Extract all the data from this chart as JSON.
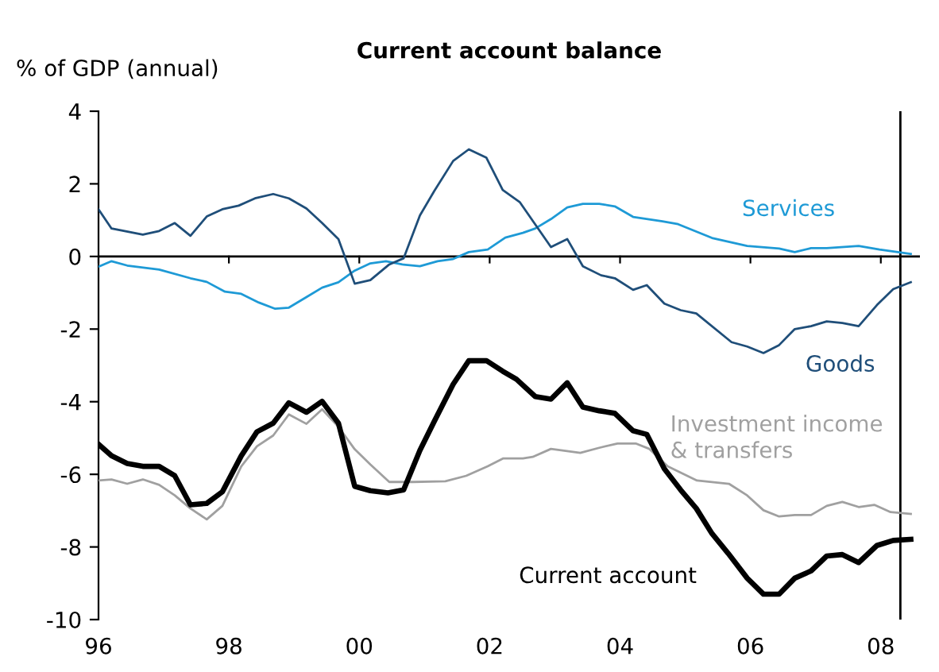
{
  "chart_data": {
    "type": "line",
    "title": "Current account balance",
    "ylabel": "% of GDP (annual)",
    "xlim": [
      1996,
      2008.6
    ],
    "xticks": [
      {
        "value": 1996,
        "label": "96"
      },
      {
        "value": 1998,
        "label": "98"
      },
      {
        "value": 2000,
        "label": "00"
      },
      {
        "value": 2002,
        "label": "02"
      },
      {
        "value": 2004,
        "label": "04"
      },
      {
        "value": 2006,
        "label": "06"
      },
      {
        "value": 2008,
        "label": "08"
      }
    ],
    "ylim": [
      -10,
      4
    ],
    "yticks": [
      -10,
      -8,
      -6,
      -4,
      -2,
      0,
      2,
      4
    ],
    "grid": false,
    "legend": false,
    "marker": "none",
    "line_style": "solid",
    "ref_lines": [
      {
        "axis": "x",
        "value": 2008.3,
        "color": "#000000"
      },
      {
        "axis": "y",
        "value": 0,
        "color": "#000000"
      }
    ],
    "series": [
      {
        "name": "Services",
        "color": "#1e9ad6",
        "x": [
          1996.0,
          1996.2,
          1996.44,
          1996.93,
          1997.41,
          1997.66,
          1997.94,
          1998.19,
          1998.46,
          1998.71,
          1998.92,
          1999.19,
          1999.43,
          1999.68,
          1999.93,
          2000.17,
          2000.41,
          2000.66,
          2000.93,
          2001.2,
          2001.44,
          2001.68,
          2001.97,
          2002.24,
          2002.51,
          2002.7,
          2002.94,
          2003.19,
          2003.43,
          2003.68,
          2003.92,
          2004.2,
          2004.65,
          2004.89,
          2005.41,
          2005.95,
          2006.44,
          2006.68,
          2006.93,
          2007.17,
          2007.66,
          2007.98,
          2008.46
        ],
        "values": [
          -0.28,
          -0.13,
          -0.25,
          -0.36,
          -0.6,
          -0.7,
          -0.97,
          -1.03,
          -1.27,
          -1.44,
          -1.41,
          -1.12,
          -0.86,
          -0.71,
          -0.39,
          -0.19,
          -0.13,
          -0.22,
          -0.27,
          -0.13,
          -0.07,
          0.12,
          0.19,
          0.52,
          0.65,
          0.77,
          1.03,
          1.35,
          1.45,
          1.45,
          1.38,
          1.09,
          0.97,
          0.89,
          0.51,
          0.29,
          0.22,
          0.12,
          0.23,
          0.23,
          0.29,
          0.19,
          0.07
        ]
      },
      {
        "name": "Goods",
        "color": "#1f4e79",
        "x": [
          1996.0,
          1996.2,
          1996.68,
          1996.93,
          1997.17,
          1997.41,
          1997.66,
          1997.9,
          1998.15,
          1998.4,
          1998.68,
          1998.92,
          1999.19,
          1999.43,
          1999.68,
          1999.93,
          2000.17,
          2000.46,
          2000.68,
          2000.93,
          2001.15,
          2001.44,
          2001.68,
          2001.95,
          2002.2,
          2002.46,
          2002.94,
          2003.19,
          2003.43,
          2003.71,
          2003.92,
          2004.2,
          2004.41,
          2004.68,
          2004.93,
          2005.17,
          2005.71,
          2005.95,
          2006.2,
          2006.44,
          2006.68,
          2006.93,
          2007.17,
          2007.41,
          2007.66,
          2007.94,
          2008.19,
          2008.46
        ],
        "values": [
          1.3,
          0.77,
          0.6,
          0.7,
          0.92,
          0.57,
          1.1,
          1.3,
          1.4,
          1.6,
          1.72,
          1.6,
          1.32,
          0.92,
          0.48,
          -0.75,
          -0.65,
          -0.22,
          -0.05,
          1.13,
          1.8,
          2.63,
          2.95,
          2.72,
          1.83,
          1.5,
          0.26,
          0.48,
          -0.27,
          -0.52,
          -0.6,
          -0.92,
          -0.79,
          -1.3,
          -1.48,
          -1.57,
          -2.36,
          -2.48,
          -2.66,
          -2.44,
          -2.0,
          -1.92,
          -1.79,
          -1.83,
          -1.92,
          -1.34,
          -0.9,
          -0.71
        ]
      },
      {
        "name": "Investment income\n& transfers",
        "color": "#a0a0a0",
        "x": [
          1996.0,
          1996.2,
          1996.44,
          1996.68,
          1996.93,
          1997.17,
          1997.41,
          1997.66,
          1997.9,
          1998.19,
          1998.43,
          1998.68,
          1998.92,
          1999.19,
          1999.43,
          1999.68,
          1999.93,
          2000.17,
          2000.46,
          2000.83,
          2001.32,
          2001.64,
          2001.97,
          2002.21,
          2002.51,
          2002.66,
          2002.94,
          2003.39,
          2003.68,
          2003.96,
          2004.24,
          2004.45,
          2004.73,
          2005.18,
          2005.67,
          2005.95,
          2006.2,
          2006.44,
          2006.68,
          2006.93,
          2007.17,
          2007.41,
          2007.66,
          2007.9,
          2008.15,
          2008.46
        ],
        "values": [
          -6.17,
          -6.14,
          -6.26,
          -6.14,
          -6.29,
          -6.58,
          -6.94,
          -7.24,
          -6.87,
          -5.78,
          -5.23,
          -4.93,
          -4.35,
          -4.61,
          -4.21,
          -4.69,
          -5.31,
          -5.73,
          -6.21,
          -6.21,
          -6.19,
          -6.04,
          -5.78,
          -5.56,
          -5.56,
          -5.52,
          -5.3,
          -5.41,
          -5.27,
          -5.15,
          -5.15,
          -5.3,
          -5.78,
          -6.17,
          -6.26,
          -6.58,
          -6.99,
          -7.16,
          -7.12,
          -7.12,
          -6.87,
          -6.76,
          -6.9,
          -6.84,
          -7.04,
          -7.09
        ]
      },
      {
        "name": "Current account",
        "color": "#000000",
        "x": [
          1996.0,
          1996.2,
          1996.44,
          1996.68,
          1996.93,
          1997.17,
          1997.41,
          1997.66,
          1997.9,
          1998.19,
          1998.43,
          1998.68,
          1998.92,
          1999.19,
          1999.43,
          1999.68,
          1999.93,
          2000.17,
          2000.44,
          2000.68,
          2000.93,
          2001.15,
          2001.44,
          2001.68,
          2001.95,
          2002.2,
          2002.41,
          2002.7,
          2002.94,
          2003.19,
          2003.43,
          2003.68,
          2003.92,
          2004.2,
          2004.41,
          2004.68,
          2004.93,
          2005.17,
          2005.41,
          2005.66,
          2005.95,
          2006.2,
          2006.44,
          2006.68,
          2006.93,
          2007.17,
          2007.41,
          2007.66,
          2007.94,
          2008.19,
          2008.46
        ],
        "values": [
          -5.17,
          -5.49,
          -5.7,
          -5.78,
          -5.78,
          -6.04,
          -6.84,
          -6.8,
          -6.48,
          -5.49,
          -4.83,
          -4.59,
          -4.03,
          -4.29,
          -3.99,
          -4.59,
          -6.33,
          -6.45,
          -6.51,
          -6.43,
          -5.34,
          -4.54,
          -3.52,
          -2.87,
          -2.87,
          -3.16,
          -3.38,
          -3.86,
          -3.93,
          -3.48,
          -4.15,
          -4.25,
          -4.32,
          -4.8,
          -4.9,
          -5.85,
          -6.43,
          -6.94,
          -7.63,
          -8.18,
          -8.86,
          -9.3,
          -9.3,
          -8.86,
          -8.66,
          -8.25,
          -8.21,
          -8.43,
          -7.96,
          -7.82,
          -7.79
        ]
      }
    ]
  }
}
